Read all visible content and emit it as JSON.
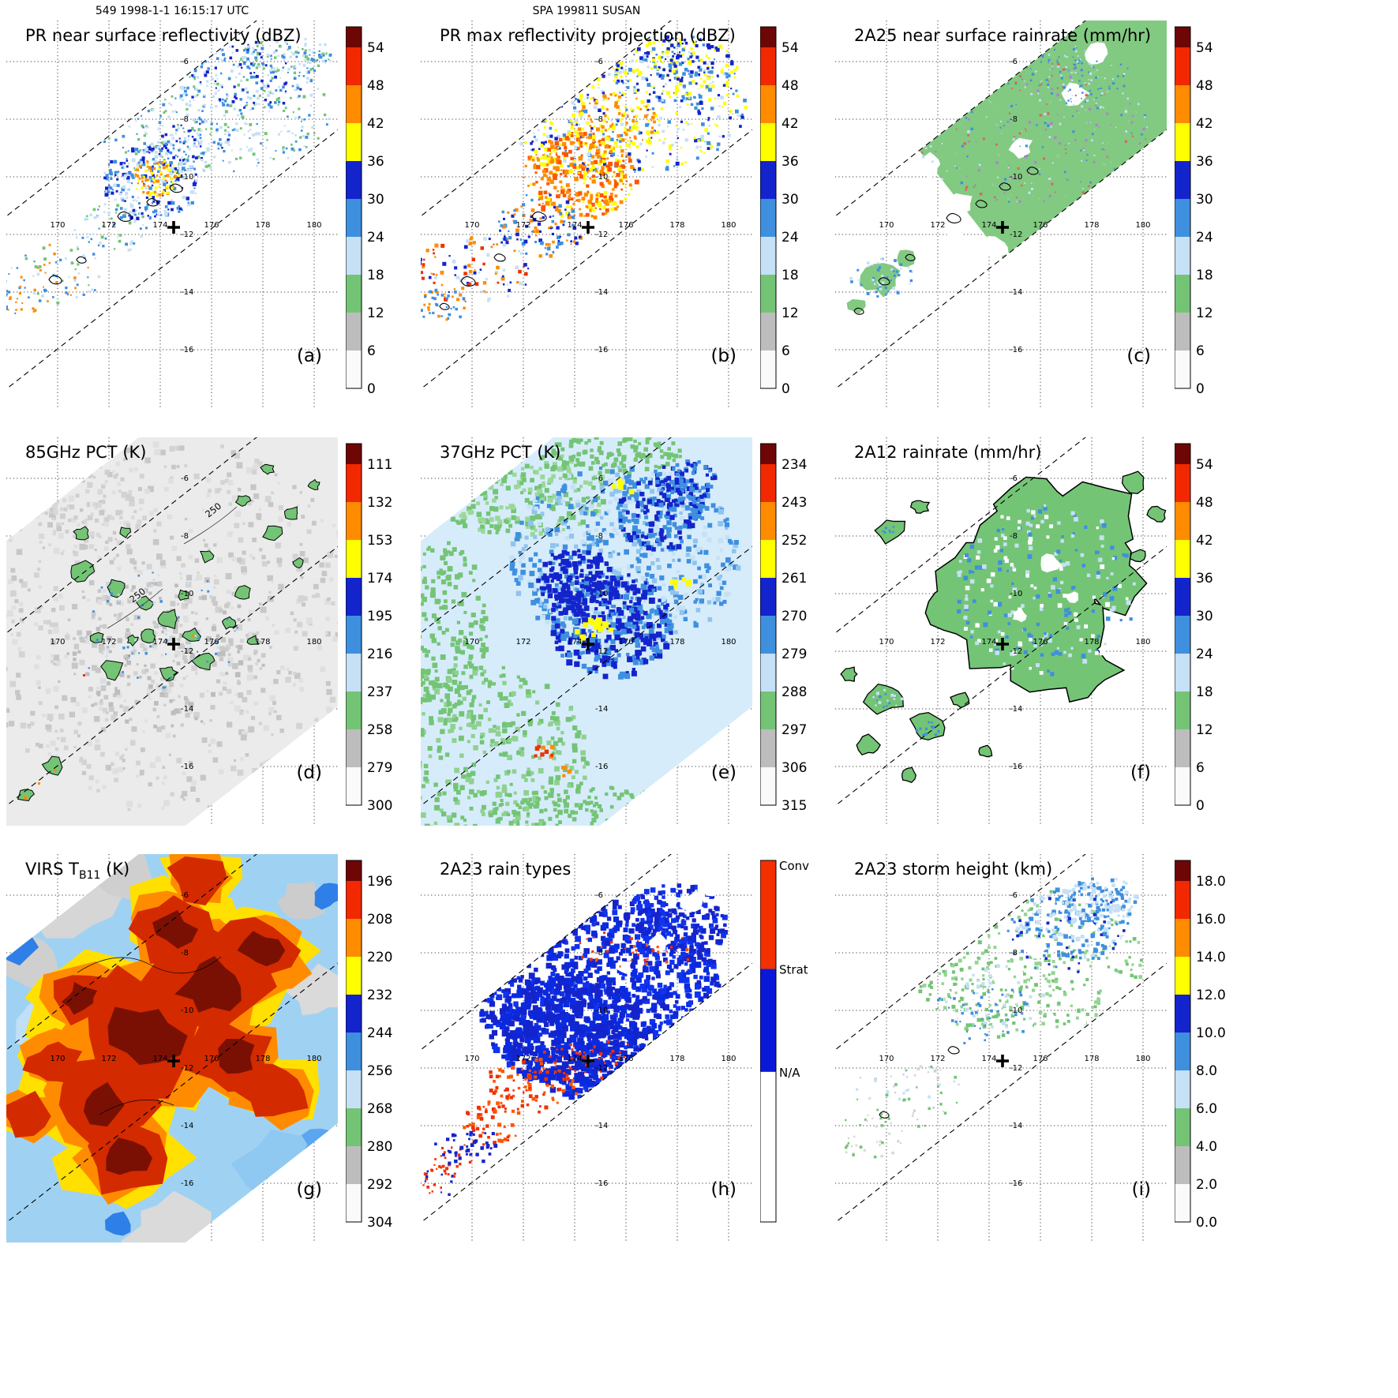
{
  "header": {
    "left": "549 1998-1-1 16:15:17 UTC",
    "center": "SPA 199811 SUSAN"
  },
  "grid": {
    "lon_labels": [
      "170",
      "172",
      "174",
      "176",
      "178",
      "180"
    ],
    "lat_labels": [
      "-6",
      "-8",
      "-10",
      "-12",
      "-14",
      "-16"
    ]
  },
  "palette": {
    "cap": "#6e0606",
    "colors_bottom_to_top": [
      "#fafafa",
      "#bdbdbd",
      "#74c476",
      "#c6e0f5",
      "#3f8fdf",
      "#1424cc",
      "#ffff00",
      "#ff8c00",
      "#f22800"
    ]
  },
  "colorbars": {
    "dbz": {
      "ticks_top_to_bottom": [
        "54",
        "48",
        "42",
        "36",
        "30",
        "24",
        "18",
        "12",
        "6",
        "0"
      ]
    },
    "pct85": {
      "ticks_top_to_bottom": [
        "111",
        "132",
        "153",
        "174",
        "195",
        "216",
        "237",
        "258",
        "279",
        "300"
      ]
    },
    "pct37": {
      "ticks_top_to_bottom": [
        "234",
        "243",
        "252",
        "261",
        "270",
        "279",
        "288",
        "297",
        "306",
        "315"
      ]
    },
    "tb11": {
      "ticks_top_to_bottom": [
        "196",
        "208",
        "220",
        "232",
        "244",
        "256",
        "268",
        "280",
        "292",
        "304"
      ]
    },
    "height": {
      "ticks_top_to_bottom": [
        "18.0",
        "16.0",
        "14.0",
        "12.0",
        "10.0",
        "8.0",
        "6.0",
        "4.0",
        "2.0",
        "0.0"
      ]
    },
    "raintype": {
      "labels": [
        "Conv",
        "Strat",
        "N/A"
      ],
      "colors": {
        "conv": "#f23000",
        "strat": "#0a18d8",
        "na": "#ffffff"
      },
      "boundaries": [
        0.3,
        0.585
      ]
    }
  },
  "panels": [
    {
      "id": "a",
      "letter": "(a)",
      "title": "PR near surface reflectivity (dBZ)",
      "colorbar": "dbz"
    },
    {
      "id": "b",
      "letter": "(b)",
      "title": "PR max reflectivity projection (dBZ)",
      "colorbar": "dbz"
    },
    {
      "id": "c",
      "letter": "(c)",
      "title": "2A25 near surface rainrate (mm/hr)",
      "colorbar": "dbz"
    },
    {
      "id": "d",
      "letter": "(d)",
      "title": "85GHz PCT (K)",
      "colorbar": "pct85",
      "contour_label": "250"
    },
    {
      "id": "e",
      "letter": "(e)",
      "title": "37GHz PCT (K)",
      "colorbar": "pct37"
    },
    {
      "id": "f",
      "letter": "(f)",
      "title": "2A12 rainrate (mm/hr)",
      "colorbar": "dbz"
    },
    {
      "id": "g",
      "letter": "(g)",
      "title_pre": "VIRS T",
      "title_sub": "B11",
      "title_post": " (K)",
      "colorbar": "tb11"
    },
    {
      "id": "h",
      "letter": "(h)",
      "title": "2A23 rain types",
      "colorbar": "raintype"
    },
    {
      "id": "i",
      "letter": "(i)",
      "title": "2A23 storm height (km)",
      "colorbar": "height"
    }
  ]
}
